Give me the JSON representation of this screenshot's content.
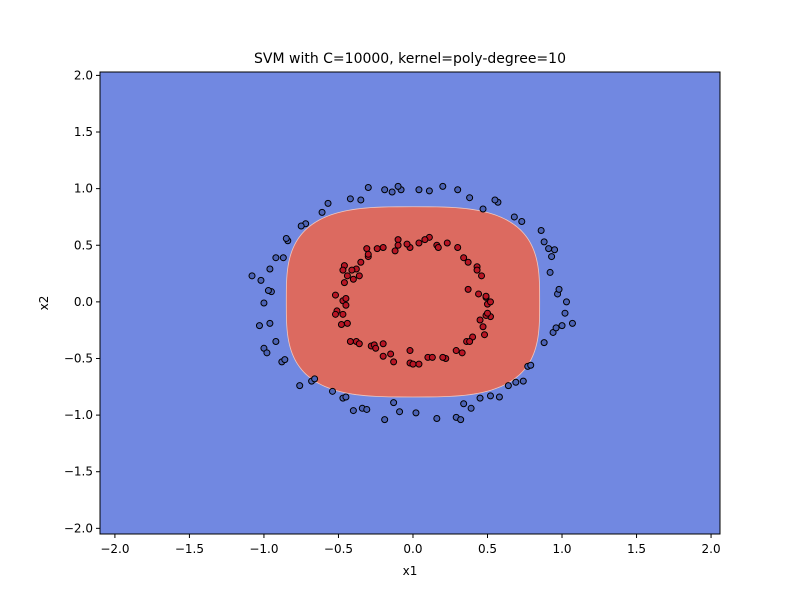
{
  "chart_data": {
    "type": "scatter",
    "title": "SVM with C=10000, kernel=poly-degree=10",
    "xlabel": "x1",
    "ylabel": "x2",
    "xlim": [
      -2.1,
      2.06
    ],
    "ylim": [
      -2.05,
      2.03
    ],
    "xticks": [
      -2.0,
      -1.5,
      -1.0,
      -0.5,
      0.0,
      0.5,
      1.0,
      1.5,
      2.0
    ],
    "xtick_labels": [
      "−2.0",
      "−1.5",
      "−1.0",
      "−0.5",
      "0.0",
      "0.5",
      "1.0",
      "1.5",
      "2.0"
    ],
    "yticks": [
      -2.0,
      -1.5,
      -1.0,
      -0.5,
      0.0,
      0.5,
      1.0,
      1.5,
      2.0
    ],
    "ytick_labels": [
      "−2.0",
      "−1.5",
      "−1.0",
      "−0.5",
      "0.0",
      "0.5",
      "1.0",
      "1.5",
      "2.0"
    ],
    "grid": false,
    "legend": "none",
    "decision_regions": {
      "background_class": 0,
      "background_color": "#7188e1",
      "inner_class": 1,
      "inner_color": "#dc6a60",
      "inner_region": {
        "shape": "rounded-superellipse",
        "center": [
          0.0,
          0.0
        ],
        "x_half_width": 0.85,
        "y_half_height": 0.84
      }
    },
    "series": [
      {
        "class": 0,
        "color": "#4c63b5",
        "edgecolor": "#000000",
        "points": [
          [
            -1.08,
            0.23
          ],
          [
            -1.02,
            0.19
          ],
          [
            -0.96,
            0.29
          ],
          [
            -0.95,
            0.09
          ],
          [
            -0.97,
            0.1
          ],
          [
            -1.0,
            -0.01
          ],
          [
            -1.03,
            -0.21
          ],
          [
            -0.96,
            -0.19
          ],
          [
            -0.92,
            -0.35
          ],
          [
            -1.0,
            -0.41
          ],
          [
            -0.98,
            -0.45
          ],
          [
            -0.88,
            -0.53
          ],
          [
            -0.86,
            -0.51
          ],
          [
            -0.76,
            -0.74
          ],
          [
            -0.68,
            -0.7
          ],
          [
            -0.66,
            -0.68
          ],
          [
            -0.54,
            -0.79
          ],
          [
            -0.47,
            -0.85
          ],
          [
            -0.45,
            -0.84
          ],
          [
            -0.4,
            -0.96
          ],
          [
            -0.34,
            -0.94
          ],
          [
            -0.31,
            -0.95
          ],
          [
            -0.19,
            -1.04
          ],
          [
            -0.13,
            -0.89
          ],
          [
            -0.09,
            -0.97
          ],
          [
            0.02,
            -0.98
          ],
          [
            0.16,
            -1.03
          ],
          [
            0.29,
            -1.02
          ],
          [
            0.32,
            -1.04
          ],
          [
            0.34,
            -0.9
          ],
          [
            0.39,
            -0.94
          ],
          [
            0.45,
            -0.85
          ],
          [
            0.52,
            -0.83
          ],
          [
            0.58,
            -0.84
          ],
          [
            0.64,
            -0.74
          ],
          [
            0.69,
            -0.71
          ],
          [
            0.74,
            -0.7
          ],
          [
            0.77,
            -0.57
          ],
          [
            0.79,
            -0.56
          ],
          [
            0.88,
            -0.36
          ],
          [
            0.94,
            -0.27
          ],
          [
            0.96,
            -0.23
          ],
          [
            1.0,
            -0.21
          ],
          [
            1.07,
            -0.19
          ],
          [
            1.02,
            -0.1
          ],
          [
            1.03,
            0.0
          ],
          [
            0.97,
            0.07
          ],
          [
            0.98,
            0.11
          ],
          [
            0.92,
            0.26
          ],
          [
            0.93,
            0.4
          ],
          [
            0.95,
            0.46
          ],
          [
            0.91,
            0.47
          ],
          [
            0.88,
            0.53
          ],
          [
            0.86,
            0.63
          ],
          [
            0.73,
            0.71
          ],
          [
            0.68,
            0.75
          ],
          [
            0.57,
            0.88
          ],
          [
            0.55,
            0.9
          ],
          [
            0.47,
            0.82
          ],
          [
            0.38,
            0.92
          ],
          [
            0.3,
            0.99
          ],
          [
            0.2,
            1.02
          ],
          [
            0.11,
            0.98
          ],
          [
            0.04,
            0.99
          ],
          [
            -0.08,
            0.99
          ],
          [
            -0.1,
            1.02
          ],
          [
            -0.14,
            0.97
          ],
          [
            -0.19,
            0.99
          ],
          [
            -0.3,
            1.01
          ],
          [
            -0.35,
            0.9
          ],
          [
            -0.42,
            0.91
          ],
          [
            -0.57,
            0.87
          ],
          [
            -0.61,
            0.79
          ],
          [
            -0.72,
            0.69
          ],
          [
            -0.75,
            0.67
          ],
          [
            -0.84,
            0.54
          ],
          [
            -0.85,
            0.56
          ],
          [
            -0.87,
            0.39
          ],
          [
            -0.92,
            0.39
          ]
        ]
      },
      {
        "class": 1,
        "color": "#b81524",
        "edgecolor": "#000000",
        "points": [
          [
            -0.46,
            0.32
          ],
          [
            -0.47,
            0.28
          ],
          [
            -0.44,
            0.23
          ],
          [
            -0.46,
            0.17
          ],
          [
            -0.52,
            0.06
          ],
          [
            -0.47,
            0.01
          ],
          [
            -0.45,
            0.03
          ],
          [
            -0.51,
            -0.08
          ],
          [
            -0.47,
            -0.11
          ],
          [
            -0.44,
            -0.19
          ],
          [
            -0.48,
            -0.2
          ],
          [
            -0.38,
            -0.35
          ],
          [
            -0.28,
            -0.39
          ],
          [
            -0.26,
            -0.38
          ],
          [
            -0.2,
            -0.37
          ],
          [
            -0.2,
            -0.48
          ],
          [
            -0.15,
            -0.46
          ],
          [
            -0.02,
            -0.43
          ],
          [
            -0.02,
            -0.54
          ],
          [
            0.04,
            -0.55
          ],
          [
            0.1,
            -0.49
          ],
          [
            0.13,
            -0.49
          ],
          [
            0.22,
            -0.5
          ],
          [
            0.29,
            -0.43
          ],
          [
            0.33,
            -0.45
          ],
          [
            0.36,
            -0.35
          ],
          [
            0.4,
            -0.31
          ],
          [
            0.48,
            -0.29
          ],
          [
            0.47,
            -0.22
          ],
          [
            0.45,
            -0.16
          ],
          [
            0.52,
            -0.13
          ],
          [
            0.49,
            -0.12
          ],
          [
            0.5,
            -0.02
          ],
          [
            0.52,
            0.0
          ],
          [
            0.49,
            0.04
          ],
          [
            0.44,
            0.07
          ],
          [
            0.37,
            0.11
          ],
          [
            0.46,
            0.23
          ],
          [
            0.43,
            0.31
          ],
          [
            0.37,
            0.35
          ],
          [
            0.34,
            0.39
          ],
          [
            0.3,
            0.48
          ],
          [
            0.23,
            0.52
          ],
          [
            0.16,
            0.5
          ],
          [
            0.11,
            0.57
          ],
          [
            0.08,
            0.55
          ],
          [
            0.04,
            0.52
          ],
          [
            -0.02,
            0.48
          ],
          [
            -0.1,
            0.55
          ],
          [
            -0.1,
            0.5
          ],
          [
            -0.12,
            0.45
          ],
          [
            -0.2,
            0.48
          ],
          [
            -0.24,
            0.47
          ],
          [
            -0.31,
            0.47
          ],
          [
            -0.3,
            0.4
          ],
          [
            -0.35,
            0.35
          ],
          [
            -0.38,
            0.29
          ],
          [
            -0.41,
            0.28
          ],
          [
            -0.36,
            0.23
          ],
          [
            -0.4,
            0.2
          ],
          [
            -0.45,
            -0.03
          ],
          [
            -0.52,
            -0.11
          ],
          [
            -0.42,
            -0.35
          ],
          [
            -0.36,
            -0.37
          ],
          [
            -0.25,
            -0.41
          ],
          [
            -0.13,
            -0.53
          ],
          [
            0.0,
            -0.55
          ],
          [
            0.2,
            -0.49
          ],
          [
            0.38,
            -0.35
          ],
          [
            0.5,
            -0.1
          ],
          [
            0.49,
            0.05
          ],
          [
            0.43,
            0.28
          ],
          [
            0.17,
            0.48
          ],
          [
            -0.04,
            0.51
          ],
          [
            -0.3,
            0.42
          ]
        ]
      }
    ]
  }
}
